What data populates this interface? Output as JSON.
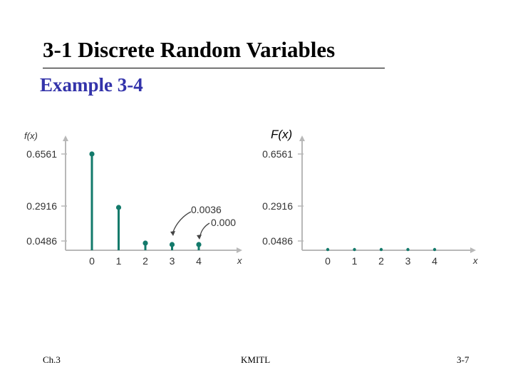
{
  "slide": {
    "title": "3-1 Discrete Random Variables",
    "subtitle": "Example 3-4"
  },
  "chart_data": [
    {
      "type": "stem",
      "ylabel": "f(x)",
      "xlabel": "x",
      "x": [
        0,
        1,
        2,
        3,
        4
      ],
      "values": [
        0.6561,
        0.2916,
        0.0486,
        0.0036,
        0.0001
      ],
      "ytick_labels": [
        "0.6561",
        "0.2916",
        "0.0486"
      ],
      "xtick_labels": [
        "0",
        "1",
        "2",
        "3",
        "4"
      ],
      "annotations": [
        {
          "text": "0.0036",
          "x": 3
        },
        {
          "text": "0.000",
          "x": 4
        }
      ],
      "ylim": [
        0,
        0.75
      ]
    },
    {
      "type": "scatter",
      "ylabel": "F(x)",
      "xlabel": "x",
      "x": [
        0,
        1,
        2,
        3,
        4
      ],
      "values": [
        0,
        0,
        0,
        0,
        0
      ],
      "ytick_labels": [
        "0.6561",
        "0.2916",
        "0.0486"
      ],
      "xtick_labels": [
        "0",
        "1",
        "2",
        "3",
        "4"
      ],
      "ylim": [
        0,
        0.75
      ]
    }
  ],
  "colors": {
    "stem": "#137a6b",
    "axis": "#b8b8b8",
    "tick_text": "#333333",
    "subtitle": "#3333aa"
  },
  "footer": {
    "left": "Ch.3",
    "center": "KMITL",
    "right": "3-7"
  }
}
